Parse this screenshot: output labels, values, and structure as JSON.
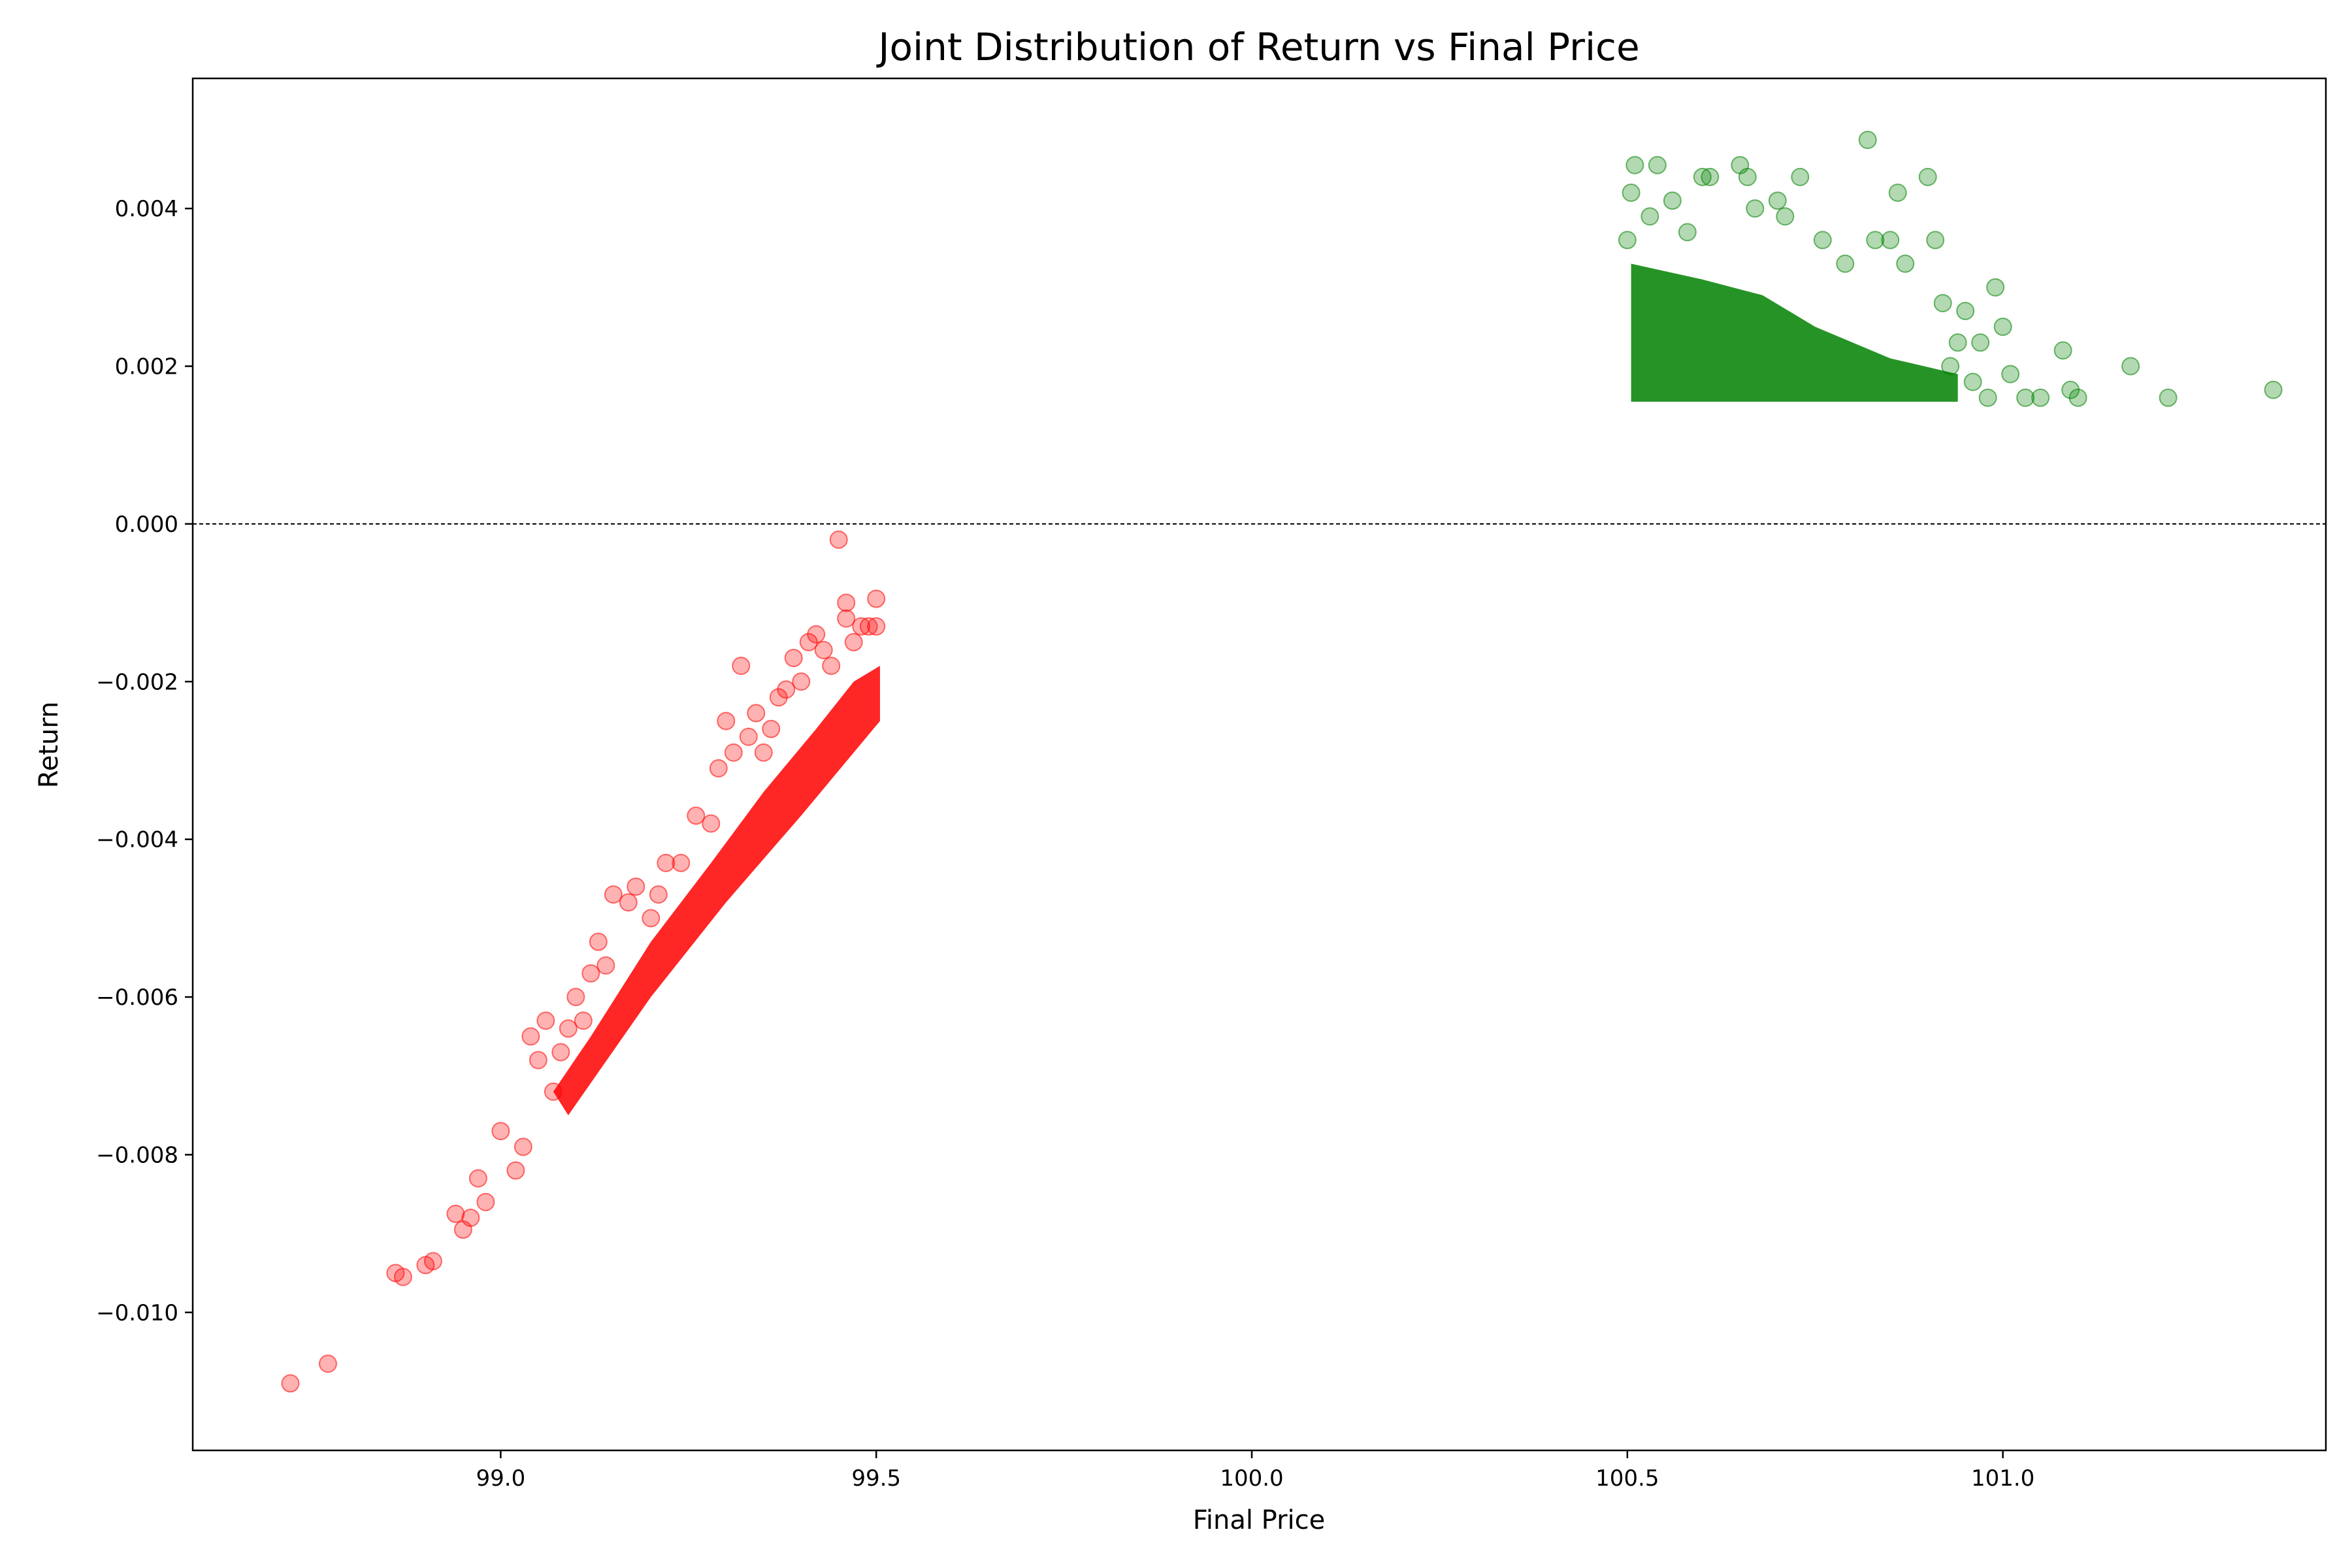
{
  "chart_data": {
    "type": "scatter",
    "title": "Joint Distribution of Return vs Final Price",
    "xlabel": "Final Price",
    "ylabel": "Return",
    "xlim": [
      98.59,
      101.43
    ],
    "ylim": [
      -0.01175,
      0.00565
    ],
    "xticks": [
      99.0,
      99.5,
      100.0,
      100.5,
      101.0
    ],
    "xtick_labels": [
      "99.0",
      "99.5",
      "100.0",
      "100.5",
      "101.0"
    ],
    "yticks": [
      0.004,
      0.002,
      0.0,
      -0.002,
      -0.004,
      -0.006,
      -0.008,
      -0.01
    ],
    "ytick_labels": [
      "0.004",
      "0.002",
      "0.000",
      "−0.002",
      "−0.004",
      "−0.006",
      "−0.008",
      "−0.010"
    ],
    "grid": false,
    "reference_line": {
      "y": 0.0,
      "style": "dashed",
      "color": "#000000"
    },
    "series": [
      {
        "color": "#ff0000",
        "alpha": 0.3,
        "points": [
          [
            98.72,
            -0.0109
          ],
          [
            98.77,
            -0.01065
          ],
          [
            98.86,
            -0.0095
          ],
          [
            98.87,
            -0.00955
          ],
          [
            98.9,
            -0.0094
          ],
          [
            98.91,
            -0.00935
          ],
          [
            98.94,
            -0.00875
          ],
          [
            98.95,
            -0.00895
          ],
          [
            98.96,
            -0.0088
          ],
          [
            98.97,
            -0.0083
          ],
          [
            98.98,
            -0.0086
          ],
          [
            99.0,
            -0.0077
          ],
          [
            99.02,
            -0.0082
          ],
          [
            99.03,
            -0.0079
          ],
          [
            99.04,
            -0.0065
          ],
          [
            99.05,
            -0.0068
          ],
          [
            99.06,
            -0.0063
          ],
          [
            99.07,
            -0.0072
          ],
          [
            99.08,
            -0.0067
          ],
          [
            99.09,
            -0.0064
          ],
          [
            99.1,
            -0.006
          ],
          [
            99.11,
            -0.0063
          ],
          [
            99.12,
            -0.0057
          ],
          [
            99.13,
            -0.0053
          ],
          [
            99.14,
            -0.0056
          ],
          [
            99.15,
            -0.0047
          ],
          [
            99.17,
            -0.0048
          ],
          [
            99.18,
            -0.0046
          ],
          [
            99.2,
            -0.005
          ],
          [
            99.21,
            -0.0047
          ],
          [
            99.22,
            -0.0043
          ],
          [
            99.24,
            -0.0043
          ],
          [
            99.26,
            -0.0037
          ],
          [
            99.28,
            -0.0038
          ],
          [
            99.29,
            -0.0031
          ],
          [
            99.3,
            -0.0025
          ],
          [
            99.31,
            -0.0029
          ],
          [
            99.32,
            -0.0018
          ],
          [
            99.33,
            -0.0027
          ],
          [
            99.34,
            -0.0024
          ],
          [
            99.35,
            -0.0029
          ],
          [
            99.36,
            -0.0026
          ],
          [
            99.37,
            -0.0022
          ],
          [
            99.38,
            -0.0021
          ],
          [
            99.39,
            -0.0017
          ],
          [
            99.4,
            -0.002
          ],
          [
            99.41,
            -0.0015
          ],
          [
            99.42,
            -0.0014
          ],
          [
            99.43,
            -0.0016
          ],
          [
            99.44,
            -0.0018
          ],
          [
            99.45,
            -0.0002
          ],
          [
            99.46,
            -0.0012
          ],
          [
            99.46,
            -0.001
          ],
          [
            99.47,
            -0.0015
          ],
          [
            99.48,
            -0.0013
          ],
          [
            99.49,
            -0.0013
          ],
          [
            99.5,
            -0.00095
          ],
          [
            99.5,
            -0.0013
          ]
        ]
      },
      {
        "color": "#008000",
        "alpha": 0.3,
        "points": [
          [
            100.5,
            0.0036
          ],
          [
            100.51,
            0.00455
          ],
          [
            100.505,
            0.0042
          ],
          [
            100.54,
            0.00455
          ],
          [
            100.53,
            0.0039
          ],
          [
            100.56,
            0.0041
          ],
          [
            100.58,
            0.0037
          ],
          [
            100.6,
            0.0044
          ],
          [
            100.61,
            0.0044
          ],
          [
            100.65,
            0.00455
          ],
          [
            100.66,
            0.0044
          ],
          [
            100.67,
            0.004
          ],
          [
            100.7,
            0.0041
          ],
          [
            100.71,
            0.0039
          ],
          [
            100.73,
            0.0044
          ],
          [
            100.76,
            0.0036
          ],
          [
            100.79,
            0.0033
          ],
          [
            100.82,
            0.00487
          ],
          [
            100.83,
            0.0036
          ],
          [
            100.85,
            0.0036
          ],
          [
            100.86,
            0.0042
          ],
          [
            100.87,
            0.0033
          ],
          [
            100.9,
            0.0044
          ],
          [
            100.91,
            0.0036
          ],
          [
            100.92,
            0.0028
          ],
          [
            100.94,
            0.0023
          ],
          [
            100.95,
            0.0027
          ],
          [
            100.97,
            0.0023
          ],
          [
            100.99,
            0.003
          ],
          [
            101.0,
            0.0025
          ],
          [
            101.01,
            0.0019
          ],
          [
            101.03,
            0.0016
          ],
          [
            101.05,
            0.0016
          ],
          [
            101.08,
            0.0022
          ],
          [
            101.09,
            0.0017
          ],
          [
            101.1,
            0.0016
          ],
          [
            101.17,
            0.002
          ],
          [
            101.22,
            0.0016
          ],
          [
            101.36,
            0.0017
          ],
          [
            100.98,
            0.0016
          ],
          [
            100.96,
            0.0018
          ],
          [
            100.93,
            0.002
          ]
        ]
      }
    ]
  }
}
